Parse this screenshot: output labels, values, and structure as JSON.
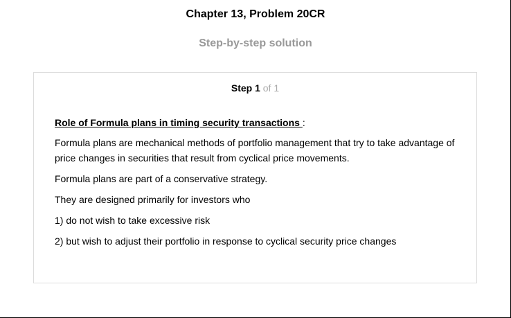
{
  "header": {
    "title": "Chapter 13, Problem 20CR",
    "subtitle": "Step-by-step solution"
  },
  "step": {
    "label": "Step 1",
    "of": " of 1"
  },
  "content": {
    "heading": "Role of Formula plans in timing security transactions ",
    "heading_suffix": ":",
    "paragraphs": [
      "Formula plans are mechanical methods of portfolio management that try to take advantage of price changes in securities that result from cyclical price movements.",
      "Formula plans are part of a conservative strategy.",
      "They are designed primarily for investors who",
      "1) do not wish to take excessive risk",
      "2) but wish to adjust their portfolio in response to cyclical security price changes"
    ]
  }
}
